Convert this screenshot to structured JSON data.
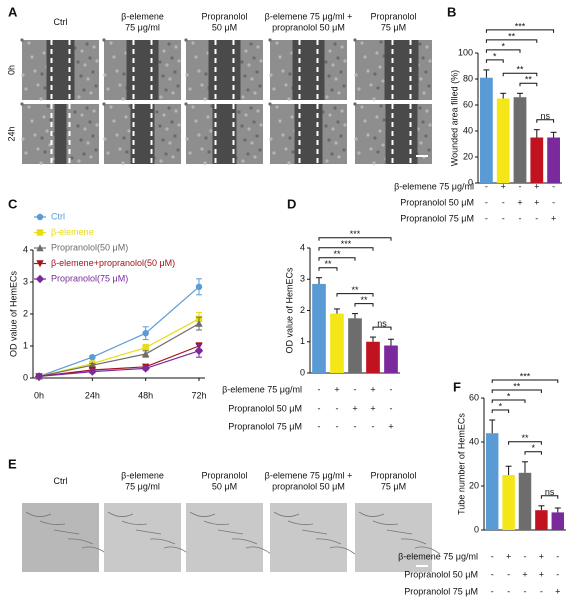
{
  "panel_labels": [
    "A",
    "B",
    "C",
    "D",
    "E",
    "F"
  ],
  "panel_a": {
    "columns": [
      [
        "Ctrl"
      ],
      [
        "β-elemene",
        "75 μg/ml"
      ],
      [
        "Propranolol",
        "50 μM"
      ],
      [
        "β-elemene 75 μg/ml +",
        "propranolol 50 μM"
      ],
      [
        "Propranolol",
        "75 μM"
      ]
    ],
    "rows": [
      "0h",
      "24h"
    ]
  },
  "panel_e": {
    "columns": [
      [
        "Ctrl"
      ],
      [
        "β-elemene",
        "75 μg/ml"
      ],
      [
        "Propranolol",
        "50 μM"
      ],
      [
        "β-elemene 75 μg/ml +",
        "propranolol 50 μM"
      ],
      [
        "Propranolol",
        "75 μM"
      ]
    ]
  },
  "chart_data": [
    {
      "type": "bar",
      "ylabel": "Wounded area filled (%)",
      "values": [
        81,
        65,
        66,
        35,
        35
      ],
      "errors": [
        6,
        4,
        3,
        6,
        4
      ],
      "colors": [
        "#5b9bd5",
        "#f4e617",
        "#6d6d6d",
        "#c1121f",
        "#7a2a9c"
      ],
      "ylim": [
        0,
        100
      ],
      "yticks": [
        0,
        20,
        40,
        60,
        80,
        100
      ],
      "treatments": [
        {
          "label": "β-elemene 75 μg/ml",
          "signs": [
            "-",
            "+",
            "-",
            "+",
            "-"
          ]
        },
        {
          "label": "Propranolol 50 μM",
          "signs": [
            "-",
            "-",
            "+",
            "+",
            "-"
          ]
        },
        {
          "label": "Propranolol 75 μM",
          "signs": [
            "-",
            "-",
            "-",
            "-",
            "+"
          ]
        }
      ],
      "significance": [
        {
          "bars": [
            0,
            4
          ],
          "label": "***"
        },
        {
          "bars": [
            0,
            3
          ],
          "label": "**"
        },
        {
          "bars": [
            0,
            2
          ],
          "label": "*"
        },
        {
          "bars": [
            0,
            1
          ],
          "label": "*"
        },
        {
          "bars": [
            1,
            3
          ],
          "label": "**"
        },
        {
          "bars": [
            2,
            3
          ],
          "label": "**"
        },
        {
          "bars": [
            3,
            4
          ],
          "label": "ns"
        }
      ]
    },
    {
      "type": "line",
      "ylabel": "OD value of HemECs",
      "categories": [
        "0h",
        "24h",
        "48h",
        "72h"
      ],
      "ylim": [
        0,
        4
      ],
      "yticks": [
        0,
        1,
        2,
        3,
        4
      ],
      "series": [
        {
          "name": "Ctrl",
          "color": "#5b9bd5",
          "marker": "circle",
          "values": [
            0.05,
            0.65,
            1.4,
            2.85
          ],
          "errors": [
            0.02,
            0.05,
            0.2,
            0.25
          ]
        },
        {
          "name": "β-elemene",
          "color": "#e8dc14",
          "marker": "square",
          "values": [
            0.05,
            0.45,
            0.95,
            1.85
          ],
          "errors": [
            0.02,
            0.05,
            0.1,
            0.2
          ]
        },
        {
          "name": "Propranolol(50 μM)",
          "color": "#6d6d6d",
          "marker": "triangle-up",
          "values": [
            0.05,
            0.4,
            0.75,
            1.7
          ],
          "errors": [
            0.02,
            0.05,
            0.1,
            0.2
          ]
        },
        {
          "name": "β-elemene+propranolol(50 μM)",
          "color": "#a4141c",
          "marker": "triangle-down",
          "values": [
            0.05,
            0.25,
            0.35,
            1.0
          ],
          "errors": [
            0.02,
            0.04,
            0.05,
            0.1
          ]
        },
        {
          "name": "Propranolol(75 μM)",
          "color": "#7a2a9c",
          "marker": "diamond",
          "values": [
            0.05,
            0.2,
            0.3,
            0.85
          ],
          "errors": [
            0.02,
            0.04,
            0.05,
            0.2
          ]
        }
      ]
    },
    {
      "type": "bar",
      "ylabel": "OD value of HemECs",
      "values": [
        2.85,
        1.9,
        1.75,
        1.0,
        0.88
      ],
      "errors": [
        0.2,
        0.15,
        0.15,
        0.15,
        0.2
      ],
      "colors": [
        "#5b9bd5",
        "#f4e617",
        "#6d6d6d",
        "#c1121f",
        "#7a2a9c"
      ],
      "ylim": [
        0,
        4
      ],
      "yticks": [
        0,
        1,
        2,
        3,
        4
      ],
      "treatments": [
        {
          "label": "β-elemene 75 μg/ml",
          "signs": [
            "-",
            "+",
            "-",
            "+",
            "-"
          ]
        },
        {
          "label": "Propranolol 50 μM",
          "signs": [
            "-",
            "-",
            "+",
            "+",
            "-"
          ]
        },
        {
          "label": "Propranolol 75 μM",
          "signs": [
            "-",
            "-",
            "-",
            "-",
            "+"
          ]
        }
      ],
      "significance": [
        {
          "bars": [
            0,
            4
          ],
          "label": "***"
        },
        {
          "bars": [
            0,
            3
          ],
          "label": "***"
        },
        {
          "bars": [
            0,
            2
          ],
          "label": "**"
        },
        {
          "bars": [
            0,
            1
          ],
          "label": "**"
        },
        {
          "bars": [
            1,
            3
          ],
          "label": "**"
        },
        {
          "bars": [
            2,
            3
          ],
          "label": "**"
        },
        {
          "bars": [
            3,
            4
          ],
          "label": "ns"
        }
      ]
    },
    {
      "type": "bar",
      "ylabel": "Tube number of HemECs",
      "values": [
        44,
        25,
        26,
        9,
        8
      ],
      "errors": [
        6,
        4,
        5,
        2,
        2
      ],
      "colors": [
        "#5b9bd5",
        "#f4e617",
        "#6d6d6d",
        "#c1121f",
        "#7a2a9c"
      ],
      "ylim": [
        0,
        60
      ],
      "yticks": [
        0,
        20,
        40,
        60
      ],
      "treatments": [
        {
          "label": "β-elemene 75 μg/ml",
          "signs": [
            "-",
            "+",
            "-",
            "+",
            "-"
          ]
        },
        {
          "label": "Propranolol 50 μM",
          "signs": [
            "-",
            "-",
            "+",
            "+",
            "-"
          ]
        },
        {
          "label": "Propranolol 75 μM",
          "signs": [
            "-",
            "-",
            "-",
            "-",
            "+"
          ]
        }
      ],
      "significance": [
        {
          "bars": [
            0,
            4
          ],
          "label": "***"
        },
        {
          "bars": [
            0,
            3
          ],
          "label": "**"
        },
        {
          "bars": [
            0,
            2
          ],
          "label": "*"
        },
        {
          "bars": [
            0,
            1
          ],
          "label": "*"
        },
        {
          "bars": [
            1,
            3
          ],
          "label": "**"
        },
        {
          "bars": [
            2,
            3
          ],
          "label": "*"
        },
        {
          "bars": [
            3,
            4
          ],
          "label": "ns"
        }
      ]
    }
  ]
}
